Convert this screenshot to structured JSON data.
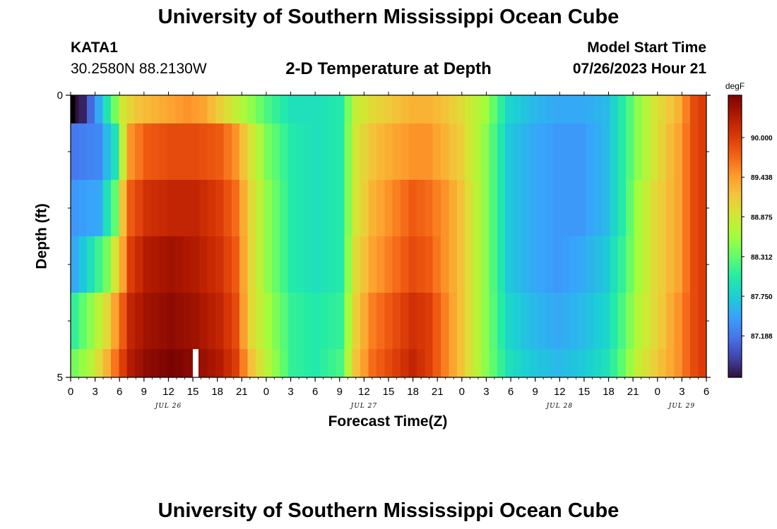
{
  "page": {
    "title_top": "University of Southern Mississippi Ocean Cube",
    "title_bottom": "University of Southern Mississippi Ocean Cube",
    "station": "KATA1",
    "coordinates": "30.2580N  88.2130W",
    "subtitle": "2-D Temperature at Depth",
    "model_start_label": "Model Start Time",
    "model_start_value": "07/26/2023 Hour 21"
  },
  "chart_data": {
    "type": "heatmap",
    "title": "2-D Temperature at Depth",
    "xlabel": "Forecast Time(Z)",
    "ylabel": "Depth (ft)",
    "x_start_hour": 0,
    "x_end_hour": 78,
    "x_step_hours": 1,
    "x_ticks": [
      0,
      3,
      6,
      9,
      12,
      15,
      18,
      21,
      24,
      27,
      30,
      33,
      36,
      39,
      42,
      45,
      48,
      51,
      54,
      57,
      60,
      63,
      66,
      69,
      72,
      75,
      78
    ],
    "x_tick_labels": [
      "0",
      "3",
      "6",
      "9",
      "12",
      "15",
      "18",
      "21",
      "0",
      "3",
      "6",
      "9",
      "12",
      "15",
      "18",
      "21",
      "0",
      "3",
      "6",
      "9",
      "12",
      "15",
      "18",
      "21",
      "0",
      "3",
      "6"
    ],
    "date_labels": [
      {
        "text": "JUL 26",
        "hour": 12
      },
      {
        "text": "JUL 27",
        "hour": 36
      },
      {
        "text": "JUL 28",
        "hour": 60
      },
      {
        "text": "JUL 29",
        "hour": 75
      }
    ],
    "y_range": [
      0,
      5
    ],
    "y_tick_labels": [
      {
        "value": 0,
        "text": "0"
      },
      {
        "value": 5,
        "text": "5"
      }
    ],
    "y_minor_ticks": [
      1,
      2,
      3,
      4
    ],
    "depth_layers": [
      {
        "top": 0.0,
        "bottom": 0.5
      },
      {
        "top": 0.5,
        "bottom": 1.5
      },
      {
        "top": 1.5,
        "bottom": 2.5
      },
      {
        "top": 2.5,
        "bottom": 3.5
      },
      {
        "top": 3.5,
        "bottom": 4.5
      },
      {
        "top": 4.5,
        "bottom": 5.0
      }
    ],
    "colorbar": {
      "unit": "degF",
      "range": [
        86.6,
        90.6
      ],
      "labels": [
        90.0,
        89.438,
        88.875,
        88.312,
        87.75,
        87.188
      ],
      "colormap": [
        "#30123b",
        "#4145ab",
        "#4675ed",
        "#39a2fc",
        "#1bcfd4",
        "#24eca6",
        "#61fc6c",
        "#a4fc3b",
        "#d1e834",
        "#f3c63a",
        "#fe9b2d",
        "#f36315",
        "#d93806",
        "#b11901",
        "#7a0402"
      ]
    },
    "series_keyframes": [
      {
        "depth": "0.0-0.5",
        "keys": [
          [
            0,
            86.6
          ],
          [
            1,
            86.7
          ],
          [
            3,
            87.5
          ],
          [
            5,
            88.4
          ],
          [
            6,
            88.9
          ],
          [
            8,
            89.2
          ],
          [
            12,
            89.4
          ],
          [
            14,
            89.5
          ],
          [
            16,
            89.4
          ],
          [
            18,
            89.1
          ],
          [
            20,
            88.8
          ],
          [
            22,
            88.5
          ],
          [
            24,
            88.2
          ],
          [
            27,
            87.9
          ],
          [
            30,
            87.9
          ],
          [
            33,
            88.0
          ],
          [
            35,
            88.8
          ],
          [
            37,
            89.0
          ],
          [
            40,
            89.2
          ],
          [
            42,
            89.3
          ],
          [
            44,
            89.3
          ],
          [
            46,
            89.2
          ],
          [
            48,
            89.0
          ],
          [
            51,
            88.6
          ],
          [
            54,
            87.8
          ],
          [
            57,
            87.6
          ],
          [
            60,
            87.5
          ],
          [
            63,
            87.5
          ],
          [
            66,
            87.6
          ],
          [
            68,
            88.0
          ],
          [
            70,
            88.5
          ],
          [
            72,
            88.9
          ],
          [
            75,
            89.3
          ],
          [
            77,
            89.9
          ],
          [
            78,
            90.0
          ]
        ]
      },
      {
        "depth": "0.5-1.5",
        "keys": [
          [
            0,
            87.2
          ],
          [
            3,
            87.3
          ],
          [
            5,
            87.9
          ],
          [
            6,
            88.8
          ],
          [
            7,
            89.5
          ],
          [
            9,
            89.8
          ],
          [
            12,
            89.9
          ],
          [
            15,
            89.9
          ],
          [
            18,
            89.8
          ],
          [
            20,
            89.5
          ],
          [
            22,
            88.9
          ],
          [
            24,
            88.4
          ],
          [
            27,
            88.0
          ],
          [
            30,
            87.9
          ],
          [
            33,
            88.0
          ],
          [
            35,
            88.9
          ],
          [
            37,
            89.2
          ],
          [
            40,
            89.4
          ],
          [
            42,
            89.5
          ],
          [
            44,
            89.5
          ],
          [
            46,
            89.3
          ],
          [
            48,
            89.1
          ],
          [
            51,
            88.5
          ],
          [
            54,
            87.7
          ],
          [
            57,
            87.5
          ],
          [
            60,
            87.4
          ],
          [
            63,
            87.4
          ],
          [
            66,
            87.6
          ],
          [
            68,
            88.0
          ],
          [
            70,
            88.5
          ],
          [
            72,
            88.9
          ],
          [
            75,
            89.4
          ],
          [
            77,
            89.9
          ],
          [
            78,
            90.0
          ]
        ]
      },
      {
        "depth": "1.5-2.5",
        "keys": [
          [
            0,
            87.4
          ],
          [
            3,
            87.5
          ],
          [
            5,
            88.3
          ],
          [
            6,
            89.2
          ],
          [
            7,
            89.8
          ],
          [
            9,
            90.1
          ],
          [
            12,
            90.2
          ],
          [
            15,
            90.2
          ],
          [
            18,
            90.0
          ],
          [
            20,
            89.7
          ],
          [
            22,
            89.0
          ],
          [
            24,
            88.5
          ],
          [
            27,
            88.0
          ],
          [
            30,
            87.9
          ],
          [
            33,
            88.0
          ],
          [
            35,
            88.9
          ],
          [
            37,
            89.3
          ],
          [
            40,
            89.6
          ],
          [
            42,
            89.8
          ],
          [
            44,
            89.7
          ],
          [
            46,
            89.5
          ],
          [
            48,
            89.2
          ],
          [
            51,
            88.5
          ],
          [
            54,
            87.7
          ],
          [
            57,
            87.5
          ],
          [
            60,
            87.4
          ],
          [
            63,
            87.4
          ],
          [
            66,
            87.6
          ],
          [
            68,
            88.0
          ],
          [
            70,
            88.6
          ],
          [
            72,
            89.0
          ],
          [
            75,
            89.4
          ],
          [
            77,
            89.9
          ],
          [
            78,
            90.0
          ]
        ]
      },
      {
        "depth": "2.5-3.5",
        "keys": [
          [
            0,
            87.5
          ],
          [
            2,
            87.9
          ],
          [
            4,
            88.4
          ],
          [
            6,
            89.4
          ],
          [
            7,
            90.0
          ],
          [
            9,
            90.3
          ],
          [
            12,
            90.4
          ],
          [
            15,
            90.3
          ],
          [
            18,
            90.1
          ],
          [
            20,
            89.8
          ],
          [
            22,
            89.0
          ],
          [
            24,
            88.5
          ],
          [
            27,
            88.0
          ],
          [
            30,
            87.9
          ],
          [
            33,
            88.0
          ],
          [
            35,
            89.0
          ],
          [
            37,
            89.4
          ],
          [
            40,
            89.7
          ],
          [
            42,
            89.9
          ],
          [
            44,
            89.8
          ],
          [
            46,
            89.5
          ],
          [
            48,
            89.2
          ],
          [
            51,
            88.5
          ],
          [
            54,
            87.7
          ],
          [
            57,
            87.5
          ],
          [
            60,
            87.4
          ],
          [
            63,
            87.5
          ],
          [
            66,
            87.7
          ],
          [
            68,
            88.1
          ],
          [
            70,
            88.6
          ],
          [
            72,
            89.0
          ],
          [
            75,
            89.4
          ],
          [
            77,
            89.9
          ],
          [
            78,
            90.0
          ]
        ]
      },
      {
        "depth": "3.5-4.5",
        "keys": [
          [
            0,
            88.1
          ],
          [
            2,
            88.5
          ],
          [
            4,
            89.0
          ],
          [
            6,
            89.8
          ],
          [
            7,
            90.2
          ],
          [
            9,
            90.4
          ],
          [
            12,
            90.5
          ],
          [
            15,
            90.4
          ],
          [
            18,
            90.2
          ],
          [
            20,
            89.9
          ],
          [
            22,
            89.0
          ],
          [
            24,
            88.6
          ],
          [
            27,
            88.1
          ],
          [
            30,
            88.0
          ],
          [
            33,
            88.1
          ],
          [
            35,
            89.1
          ],
          [
            37,
            89.6
          ],
          [
            40,
            89.9
          ],
          [
            42,
            90.1
          ],
          [
            44,
            90.0
          ],
          [
            46,
            89.6
          ],
          [
            48,
            89.2
          ],
          [
            51,
            88.5
          ],
          [
            54,
            87.8
          ],
          [
            57,
            87.6
          ],
          [
            60,
            87.5
          ],
          [
            63,
            87.6
          ],
          [
            66,
            87.8
          ],
          [
            68,
            88.2
          ],
          [
            70,
            88.7
          ],
          [
            72,
            89.0
          ],
          [
            75,
            89.5
          ],
          [
            77,
            89.9
          ],
          [
            78,
            90.0
          ]
        ]
      },
      {
        "depth": "4.5-5.0",
        "keys": [
          [
            0,
            88.4
          ],
          [
            2,
            88.7
          ],
          [
            4,
            89.3
          ],
          [
            6,
            90.0
          ],
          [
            7,
            90.3
          ],
          [
            9,
            90.5
          ],
          [
            12,
            90.6
          ],
          [
            15,
            90.5
          ],
          [
            18,
            90.3
          ],
          [
            20,
            90.0
          ],
          [
            22,
            89.2
          ],
          [
            24,
            88.7
          ],
          [
            27,
            88.1
          ],
          [
            30,
            88.0
          ],
          [
            33,
            88.2
          ],
          [
            35,
            89.2
          ],
          [
            37,
            89.7
          ],
          [
            40,
            90.0
          ],
          [
            42,
            90.2
          ],
          [
            44,
            90.0
          ],
          [
            46,
            89.6
          ],
          [
            48,
            89.2
          ],
          [
            51,
            88.5
          ],
          [
            54,
            87.9
          ],
          [
            57,
            87.7
          ],
          [
            60,
            87.6
          ],
          [
            63,
            87.7
          ],
          [
            66,
            87.9
          ],
          [
            68,
            88.3
          ],
          [
            70,
            88.8
          ],
          [
            72,
            89.1
          ],
          [
            75,
            89.5
          ],
          [
            77,
            89.9
          ],
          [
            78,
            90.0
          ]
        ]
      }
    ],
    "missing_cells": [
      {
        "depth": "0.0-0.5",
        "hour": 0,
        "color": "#000000"
      },
      {
        "depth": "4.5-5.0",
        "hour": 15,
        "color": "#ffffff"
      }
    ]
  }
}
